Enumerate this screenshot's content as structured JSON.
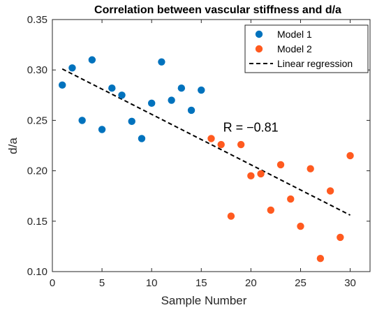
{
  "chart_data": {
    "type": "scatter",
    "title": "Correlation between vascular stiffness and d/a",
    "xlabel": "Sample Number",
    "ylabel": "d/a",
    "xlim": [
      0,
      32
    ],
    "ylim": [
      0.1,
      0.35
    ],
    "xticks": [
      "0",
      "5",
      "10",
      "15",
      "20",
      "25",
      "30"
    ],
    "yticks": [
      "0.10",
      "0.15",
      "0.20",
      "0.25",
      "0.30",
      "0.35"
    ],
    "grid": false,
    "legend_position": "top-right",
    "series": [
      {
        "name": "Model 1",
        "color": "#0072BD",
        "points": [
          [
            1,
            0.285
          ],
          [
            2,
            0.302
          ],
          [
            3,
            0.25
          ],
          [
            4,
            0.31
          ],
          [
            5,
            0.241
          ],
          [
            6,
            0.282
          ],
          [
            7,
            0.275
          ],
          [
            8,
            0.249
          ],
          [
            9,
            0.232
          ],
          [
            10,
            0.267
          ],
          [
            11,
            0.308
          ],
          [
            12,
            0.27
          ],
          [
            13,
            0.282
          ],
          [
            14,
            0.26
          ],
          [
            15,
            0.28
          ]
        ]
      },
      {
        "name": "Model 2",
        "color": "#FF5A1F",
        "points": [
          [
            16,
            0.232
          ],
          [
            17,
            0.226
          ],
          [
            18,
            0.155
          ],
          [
            19,
            0.226
          ],
          [
            20,
            0.195
          ],
          [
            21,
            0.197
          ],
          [
            22,
            0.161
          ],
          [
            23,
            0.206
          ],
          [
            24,
            0.172
          ],
          [
            25,
            0.145
          ],
          [
            26,
            0.202
          ],
          [
            27,
            0.113
          ],
          [
            28,
            0.18
          ],
          [
            29,
            0.134
          ],
          [
            30,
            0.215
          ]
        ]
      }
    ],
    "regression": {
      "name": "Linear regression",
      "color": "#000000",
      "style": "dashed",
      "x": [
        1,
        30
      ],
      "y": [
        0.301,
        0.156
      ]
    },
    "annotation": {
      "text": "R = −0.81",
      "x": 17.2,
      "y": 0.239
    }
  }
}
